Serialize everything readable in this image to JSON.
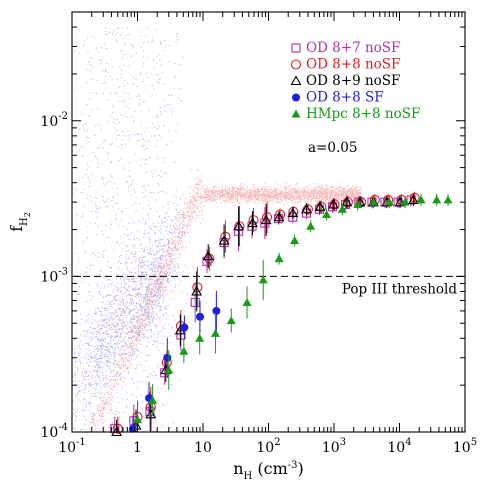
{
  "chart_data": {
    "type": "scatter",
    "x_scale": "log",
    "y_scale": "log",
    "xlim": [
      0.1,
      100000
    ],
    "ylim": [
      0.0001,
      0.05
    ],
    "xlabel": {
      "base": "n",
      "sub": "H",
      "unit": " (cm",
      "unit_sup": "-3",
      "unit_close": ")"
    },
    "ylabel": {
      "base": "f",
      "sub": "H",
      "subsub": "2"
    },
    "x_ticks": [
      {
        "value": 0.1,
        "base": "10",
        "exp": "-1"
      },
      {
        "value": 1,
        "text": "1"
      },
      {
        "value": 10,
        "text": "10"
      },
      {
        "value": 100,
        "base": "10",
        "exp": "2"
      },
      {
        "value": 1000,
        "base": "10",
        "exp": "3"
      },
      {
        "value": 10000,
        "base": "10",
        "exp": "4"
      },
      {
        "value": 100000,
        "base": "10",
        "exp": "5"
      }
    ],
    "y_ticks": [
      {
        "value": 0.0001,
        "base": "10",
        "exp": "-4"
      },
      {
        "value": 0.001,
        "base": "10",
        "exp": "-3"
      },
      {
        "value": 0.01,
        "base": "10",
        "exp": "-2"
      }
    ],
    "threshold": {
      "value": 0.001,
      "label": "Pop III threshold",
      "style": "dashed"
    },
    "annotation": "a=0.05",
    "background_clouds": [
      {
        "name": "gas cells (blue)",
        "color": "#6f6fe8"
      },
      {
        "name": "gas cells (red)",
        "color": "#f08a8a"
      }
    ],
    "series": [
      {
        "name": "OD 8+7 noSF",
        "marker": "open-square",
        "color": "#b42fb4",
        "points": [
          [
            0.45,
            0.000105
          ],
          [
            0.88,
            0.000118
          ],
          [
            1.55,
            0.000135
          ],
          [
            2.6,
            0.00024
          ],
          [
            4.6,
            0.00042
          ],
          [
            7.6,
            0.00068
          ],
          [
            11.5,
            0.00125
          ],
          [
            21,
            0.00165
          ],
          [
            35,
            0.00195
          ],
          [
            56,
            0.0021
          ],
          [
            88,
            0.0022
          ],
          [
            142,
            0.00235
          ],
          [
            235,
            0.0024
          ],
          [
            380,
            0.00255
          ],
          [
            600,
            0.0027
          ],
          [
            950,
            0.0028
          ],
          [
            1500,
            0.0029
          ],
          [
            2400,
            0.003
          ],
          [
            3800,
            0.003
          ],
          [
            6000,
            0.003
          ],
          [
            9500,
            0.003
          ],
          [
            15000,
            0.0031
          ]
        ]
      },
      {
        "name": "OD 8+8 noSF",
        "marker": "open-circle",
        "color": "#e02020",
        "points": [
          [
            0.5,
            0.000105
          ],
          [
            1.0,
            0.000125
          ],
          [
            1.6,
            0.000145
          ],
          [
            2.8,
            0.00028
          ],
          [
            4.6,
            0.00048
          ],
          [
            8.2,
            0.00085
          ],
          [
            12.5,
            0.0013
          ],
          [
            22,
            0.0018
          ],
          [
            36,
            0.0021
          ],
          [
            59,
            0.0023
          ],
          [
            95,
            0.0024
          ],
          [
            150,
            0.0025
          ],
          [
            240,
            0.0026
          ],
          [
            400,
            0.0027
          ],
          [
            640,
            0.0028
          ],
          [
            1020,
            0.0029
          ],
          [
            1630,
            0.003
          ],
          [
            2600,
            0.003
          ],
          [
            4200,
            0.0031
          ],
          [
            6700,
            0.0031
          ],
          [
            10700,
            0.0031
          ],
          [
            17000,
            0.0032
          ]
        ]
      },
      {
        "name": "OD 8+9 noSF",
        "marker": "open-triangle",
        "color": "#000000",
        "points": [
          [
            0.48,
            0.0001
          ],
          [
            0.95,
            0.00011
          ],
          [
            1.6,
            0.00013
          ],
          [
            2.7,
            0.00025
          ],
          [
            4.5,
            0.00045
          ],
          [
            8,
            0.0008
          ],
          [
            12,
            0.00135
          ],
          [
            21,
            0.0017
          ],
          [
            35,
            0.0021
          ],
          [
            57,
            0.0022
          ],
          [
            92,
            0.0023
          ],
          [
            145,
            0.0024
          ],
          [
            235,
            0.00255
          ],
          [
            380,
            0.0027
          ],
          [
            610,
            0.0028
          ],
          [
            980,
            0.0029
          ],
          [
            1570,
            0.003
          ],
          [
            2500,
            0.003
          ],
          [
            4000,
            0.003
          ],
          [
            6400,
            0.003
          ],
          [
            10200,
            0.003
          ],
          [
            16300,
            0.0031
          ]
        ]
      },
      {
        "name": "OD 8+8 SF",
        "marker": "filled-circle",
        "color": "#1f1fe0",
        "points": [
          [
            0.85,
            0.000105
          ],
          [
            1.5,
            0.000165
          ],
          [
            2.85,
            0.0003
          ],
          [
            5.2,
            0.00047
          ],
          [
            9,
            0.00055
          ],
          [
            16,
            0.0006
          ]
        ]
      },
      {
        "name": "HMpc 8+8 noSF",
        "marker": "filled-triangle",
        "color": "#1a9a1a",
        "points": [
          [
            1.0,
            0.00012
          ],
          [
            1.7,
            0.00016
          ],
          [
            3.0,
            0.00025
          ],
          [
            5.1,
            0.00033
          ],
          [
            8.9,
            0.0004
          ],
          [
            15.5,
            0.00043
          ],
          [
            27,
            0.00052
          ],
          [
            47,
            0.00068
          ],
          [
            83,
            0.00095
          ],
          [
            145,
            0.0013
          ],
          [
            250,
            0.0017
          ],
          [
            440,
            0.0021
          ],
          [
            770,
            0.0025
          ],
          [
            1340,
            0.0027
          ],
          [
            2300,
            0.0029
          ],
          [
            4000,
            0.003
          ],
          [
            7000,
            0.003
          ],
          [
            12200,
            0.003
          ],
          [
            21300,
            0.0031
          ],
          [
            37000,
            0.0031
          ],
          [
            55000,
            0.0031
          ]
        ]
      }
    ],
    "legend_position": "top-right"
  }
}
